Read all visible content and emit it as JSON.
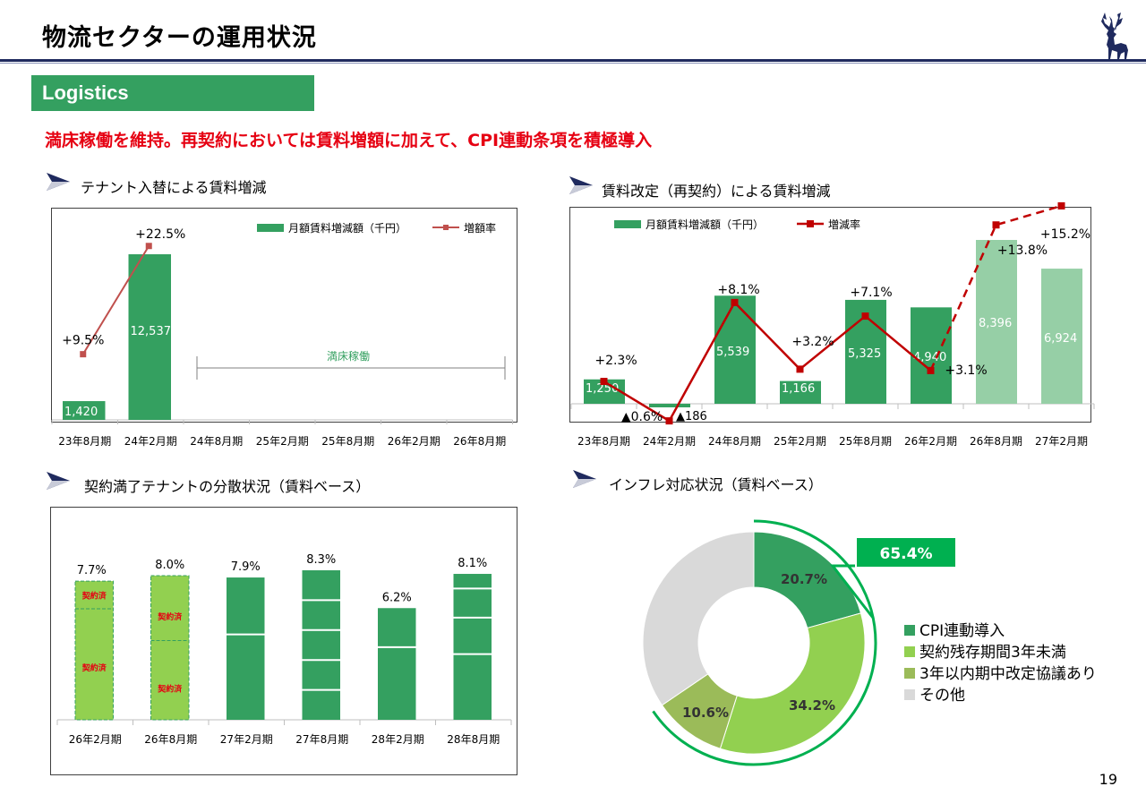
{
  "page": {
    "title": "物流セクターの運用状況",
    "page_number": "19"
  },
  "section": {
    "tag": "Logistics"
  },
  "headline": "満床稼働を維持。再契約においては賃料増額に加えて、CPI連動条項を積極導入",
  "colors": {
    "green": "#34a060",
    "light_green": "#96cfa6",
    "lime": "#92d050",
    "olive": "#9bbb59",
    "gray": "#d9d9d9",
    "red": "#c00000",
    "navy": "#1f2a5e"
  },
  "chart_data": [
    {
      "id": "tenant_replacement",
      "title": "テナント入替による賃料増減",
      "type": "bar+line",
      "categories": [
        "23年8月期",
        "24年2月期",
        "24年8月期",
        "25年2月期",
        "25年8月期",
        "26年2月期",
        "26年8月期"
      ],
      "legend": {
        "bar": "月額賃料増減額（千円）",
        "line": "増額率"
      },
      "bar_values": [
        1420,
        12537,
        null,
        null,
        null,
        null,
        null
      ],
      "bar_labels": [
        "1,420",
        "12,537"
      ],
      "line_values": [
        9.5,
        22.5
      ],
      "line_labels": [
        "+9.5%",
        "+22.5%"
      ],
      "annotation": "満床稼働"
    },
    {
      "id": "rent_revision",
      "title": "賃料改定（再契約）による賃料増減",
      "type": "bar+line",
      "categories": [
        "23年8月期",
        "24年2月期",
        "24年8月期",
        "25年2月期",
        "25年8月期",
        "26年2月期",
        "26年8月期",
        "27年2月期"
      ],
      "legend": {
        "bar": "月額賃料増減額（千円）",
        "line": "増減率"
      },
      "bar_values": [
        1250,
        -186,
        5539,
        1166,
        5325,
        4940,
        8396,
        6924
      ],
      "bar_labels": [
        "1,250",
        "▲186",
        "5,539",
        "1,166",
        "5,325",
        "4,940",
        "8,396",
        "6,924"
      ],
      "line_values": [
        2.3,
        -0.6,
        8.1,
        3.2,
        7.1,
        3.1,
        13.8,
        15.2
      ],
      "line_labels": [
        "+2.3%",
        "▲0.6%",
        "+8.1%",
        "+3.2%",
        "+7.1%",
        "+3.1%",
        "+13.8%",
        "+15.2%"
      ]
    },
    {
      "id": "expiry_distribution",
      "title": "契約満了テナントの分散状況（賃料ベース）",
      "type": "bar",
      "categories": [
        "26年2月期",
        "26年8月期",
        "27年2月期",
        "27年8月期",
        "28年2月期",
        "28年8月期"
      ],
      "values": [
        7.7,
        8.0,
        7.9,
        8.3,
        6.2,
        8.1
      ],
      "value_labels": [
        "7.7%",
        "8.0%",
        "7.9%",
        "8.3%",
        "6.2%",
        "8.1%"
      ],
      "contracted_label": "契約済"
    },
    {
      "id": "inflation_response",
      "title": "インフレ対応状況（賃料ベース）",
      "type": "pie",
      "slices": [
        {
          "name": "CPI連動導入",
          "value": 20.7,
          "label": "20.7%"
        },
        {
          "name": "契約残存期間3年未満",
          "value": 34.2,
          "label": "34.2%"
        },
        {
          "name": "3年以内期中改定協議あり",
          "value": 10.6,
          "label": "10.6%"
        },
        {
          "name": "その他",
          "value": 34.5,
          "label": ""
        }
      ],
      "total_label": "65.4%"
    }
  ]
}
